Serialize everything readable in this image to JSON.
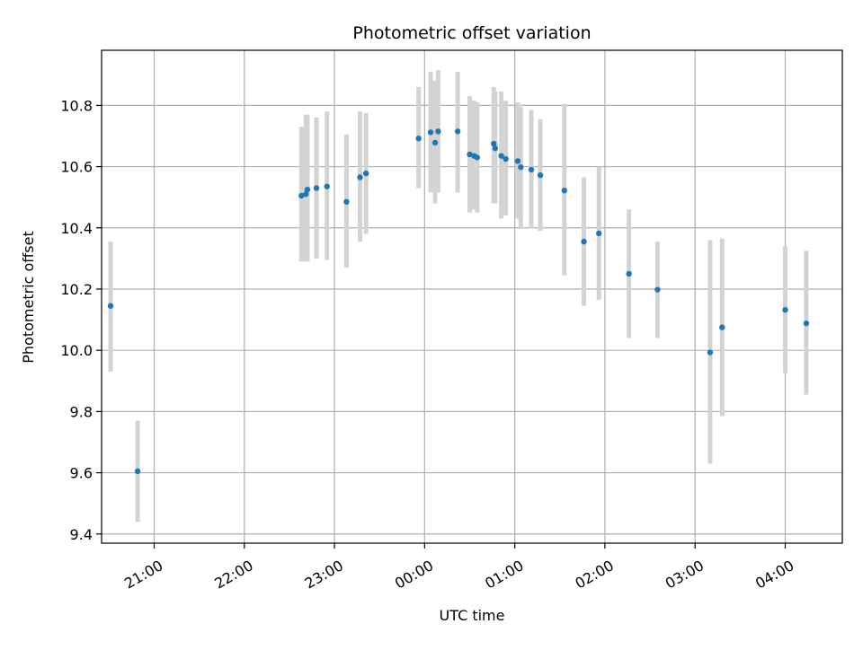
{
  "chart_data": {
    "type": "scatter",
    "title": "Photometric offset variation",
    "xlabel": "UTC time",
    "ylabel": "Photometric offset",
    "x_unit": "UTC",
    "xlim": [
      "20:25",
      "04:38"
    ],
    "ylim": [
      9.37,
      10.98
    ],
    "grid": true,
    "colors": {
      "point": "#1f77b4",
      "errorbar": "#d3d3d3",
      "grid": "#b0b0b0"
    },
    "x_ticks": [
      "21:00",
      "22:00",
      "23:00",
      "00:00",
      "01:00",
      "02:00",
      "03:00",
      "04:00"
    ],
    "y_ticks": [
      9.4,
      9.6,
      9.8,
      10.0,
      10.2,
      10.4,
      10.6,
      10.8
    ],
    "points": [
      {
        "t": "20:31",
        "y": 10.145,
        "lo": 9.93,
        "hi": 10.355
      },
      {
        "t": "20:49",
        "y": 9.605,
        "lo": 9.44,
        "hi": 9.77
      },
      {
        "t": "22:38",
        "y": 10.505,
        "lo": 10.29,
        "hi": 10.73
      },
      {
        "t": "22:41",
        "y": 10.51,
        "lo": 10.29,
        "hi": 10.77
      },
      {
        "t": "22:42",
        "y": 10.525,
        "lo": 10.29,
        "hi": 10.77
      },
      {
        "t": "22:48",
        "y": 10.53,
        "lo": 10.3,
        "hi": 10.76
      },
      {
        "t": "22:55",
        "y": 10.535,
        "lo": 10.295,
        "hi": 10.78
      },
      {
        "t": "23:08",
        "y": 10.485,
        "lo": 10.27,
        "hi": 10.705
      },
      {
        "t": "23:17",
        "y": 10.565,
        "lo": 10.355,
        "hi": 10.78
      },
      {
        "t": "23:21",
        "y": 10.578,
        "lo": 10.38,
        "hi": 10.775
      },
      {
        "t": "23:56",
        "y": 10.692,
        "lo": 10.53,
        "hi": 10.86
      },
      {
        "t": "00:04",
        "y": 10.712,
        "lo": 10.515,
        "hi": 10.91
      },
      {
        "t": "00:07",
        "y": 10.678,
        "lo": 10.48,
        "hi": 10.88
      },
      {
        "t": "00:09",
        "y": 10.715,
        "lo": 10.515,
        "hi": 10.915
      },
      {
        "t": "00:22",
        "y": 10.715,
        "lo": 10.515,
        "hi": 10.91
      },
      {
        "t": "00:30",
        "y": 10.64,
        "lo": 10.45,
        "hi": 10.83
      },
      {
        "t": "00:33",
        "y": 10.635,
        "lo": 10.46,
        "hi": 10.815
      },
      {
        "t": "00:35",
        "y": 10.63,
        "lo": 10.45,
        "hi": 10.81
      },
      {
        "t": "00:46",
        "y": 10.675,
        "lo": 10.48,
        "hi": 10.86
      },
      {
        "t": "00:47",
        "y": 10.66,
        "lo": 10.48,
        "hi": 10.845
      },
      {
        "t": "00:51",
        "y": 10.635,
        "lo": 10.43,
        "hi": 10.845
      },
      {
        "t": "00:54",
        "y": 10.625,
        "lo": 10.44,
        "hi": 10.815
      },
      {
        "t": "01:02",
        "y": 10.618,
        "lo": 10.43,
        "hi": 10.81
      },
      {
        "t": "01:04",
        "y": 10.598,
        "lo": 10.4,
        "hi": 10.795
      },
      {
        "t": "01:11",
        "y": 10.59,
        "lo": 10.4,
        "hi": 10.785
      },
      {
        "t": "01:17",
        "y": 10.572,
        "lo": 10.39,
        "hi": 10.755
      },
      {
        "t": "01:33",
        "y": 10.522,
        "lo": 10.245,
        "hi": 10.805
      },
      {
        "t": "01:46",
        "y": 10.355,
        "lo": 10.145,
        "hi": 10.565
      },
      {
        "t": "01:56",
        "y": 10.382,
        "lo": 10.165,
        "hi": 10.6
      },
      {
        "t": "02:16",
        "y": 10.25,
        "lo": 10.04,
        "hi": 10.46
      },
      {
        "t": "02:35",
        "y": 10.198,
        "lo": 10.04,
        "hi": 10.355
      },
      {
        "t": "03:10",
        "y": 9.993,
        "lo": 9.63,
        "hi": 10.36
      },
      {
        "t": "03:18",
        "y": 10.075,
        "lo": 9.785,
        "hi": 10.365
      },
      {
        "t": "04:00",
        "y": 10.132,
        "lo": 9.925,
        "hi": 10.34
      },
      {
        "t": "04:14",
        "y": 10.088,
        "lo": 9.855,
        "hi": 10.325
      }
    ]
  }
}
